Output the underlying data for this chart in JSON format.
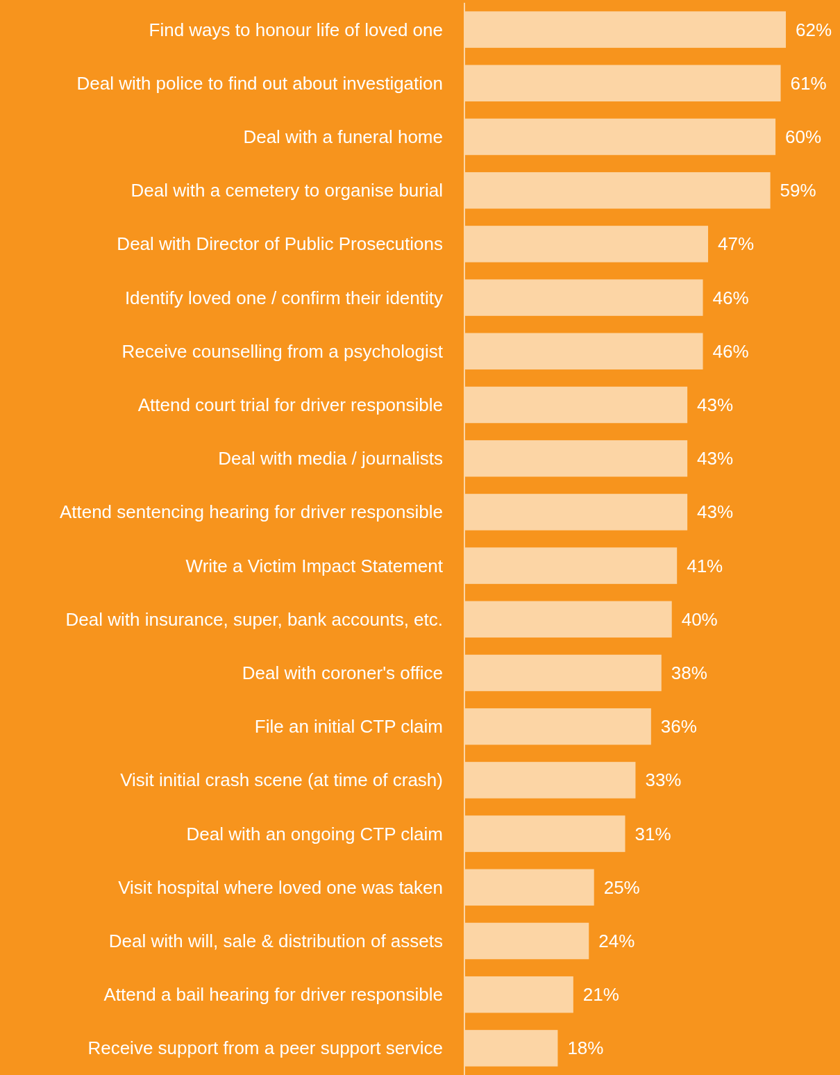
{
  "chart_data": {
    "type": "bar",
    "orientation": "horizontal",
    "categories": [
      "Find ways to honour life of loved one",
      "Deal with police to find out about investigation",
      "Deal with a funeral home",
      "Deal with a cemetery to organise burial",
      "Deal with Director of Public Prosecutions",
      "Identify loved one / confirm their identity",
      "Receive counselling from a psychologist",
      "Attend court trial for driver responsible",
      "Deal with media / journalists",
      "Attend sentencing hearing for driver responsible",
      "Write a Victim Impact Statement",
      "Deal with insurance, super, bank accounts, etc.",
      "Deal with coroner's office",
      "File an initial CTP claim",
      "Visit initial crash scene (at time of crash)",
      "Deal with an ongoing CTP claim",
      "Visit hospital where loved one was taken",
      "Deal with will, sale & distribution of assets",
      "Attend a bail hearing for driver responsible",
      "Receive support from a peer support service"
    ],
    "values": [
      62,
      61,
      60,
      59,
      47,
      46,
      46,
      43,
      43,
      43,
      41,
      40,
      38,
      36,
      33,
      31,
      25,
      24,
      21,
      18
    ],
    "value_labels": [
      "62%",
      "61%",
      "60%",
      "59%",
      "47%",
      "46%",
      "46%",
      "43%",
      "43%",
      "43%",
      "41%",
      "40%",
      "38%",
      "36%",
      "33%",
      "31%",
      "25%",
      "24%",
      "21%",
      "18%"
    ],
    "color": "#fcd5a5"
  }
}
